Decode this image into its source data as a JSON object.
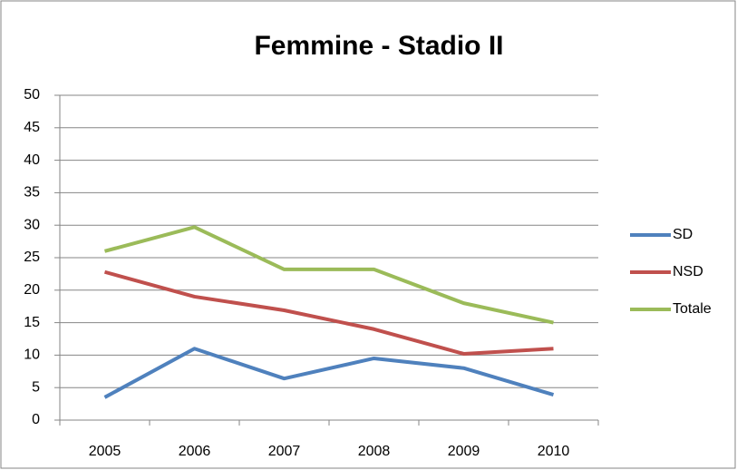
{
  "chart_data": {
    "type": "line",
    "title": "Femmine - Stadio II",
    "categories": [
      "2005",
      "2006",
      "2007",
      "2008",
      "2009",
      "2010"
    ],
    "series": [
      {
        "name": "SD",
        "color": "#4f81bd",
        "values": [
          3.5,
          11,
          6.4,
          9.5,
          8,
          3.9
        ]
      },
      {
        "name": "NSD",
        "color": "#c0504d",
        "values": [
          22.8,
          19,
          16.9,
          14,
          10.2,
          11
        ]
      },
      {
        "name": "Totale",
        "color": "#9bbb59",
        "values": [
          26,
          29.7,
          23.2,
          23.2,
          18,
          15
        ]
      }
    ],
    "ylim": [
      0,
      50
    ],
    "yticks": [
      0,
      5,
      10,
      15,
      20,
      25,
      30,
      35,
      40,
      45,
      50
    ],
    "grid": true,
    "legend": "right"
  }
}
